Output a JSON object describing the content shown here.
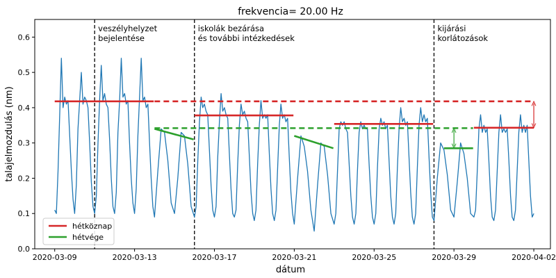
{
  "chart_data": {
    "type": "line",
    "title": "frekvencia= 20.00 Hz",
    "xlabel": "dátum",
    "ylabel": "talajelmozdulás (nm)",
    "xlim": [
      "2020-03-08 00:00",
      "2020-04-02 20:00"
    ],
    "ylim": [
      0,
      0.65
    ],
    "grid": false,
    "legend_position": "bottom-left",
    "x_ticks": [
      "2020-03-09",
      "2020-03-13",
      "2020-03-17",
      "2020-03-21",
      "2020-03-25",
      "2020-03-29",
      "2020-04-02"
    ],
    "y_ticks": [
      0.0,
      0.1,
      0.2,
      0.3,
      0.4,
      0.5,
      0.6
    ],
    "y_tick_labels": [
      "0.0",
      "0.1",
      "0.2",
      "0.3",
      "0.4",
      "0.5",
      "0.6"
    ],
    "colors": {
      "signal": "#1f77b4",
      "weekday": "#d62728",
      "weekend": "#2ca02c",
      "event": "#000000"
    },
    "series": [
      {
        "style": "signal",
        "x": [
          "2020-03-09 00:00",
          "2020-03-09 02:00",
          "2020-03-09 04:00",
          "2020-03-09 06:00",
          "2020-03-09 08:00",
          "2020-03-09 10:00",
          "2020-03-09 12:00",
          "2020-03-09 14:00",
          "2020-03-09 16:00",
          "2020-03-09 18:00",
          "2020-03-09 20:00",
          "2020-03-09 22:00",
          "2020-03-10 00:00",
          "2020-03-10 02:00",
          "2020-03-10 04:00",
          "2020-03-10 06:00",
          "2020-03-10 08:00",
          "2020-03-10 10:00",
          "2020-03-10 12:00",
          "2020-03-10 14:00",
          "2020-03-10 16:00",
          "2020-03-10 18:00",
          "2020-03-10 20:00",
          "2020-03-10 22:00",
          "2020-03-11 00:00",
          "2020-03-11 02:00",
          "2020-03-11 04:00",
          "2020-03-11 06:00",
          "2020-03-11 08:00",
          "2020-03-11 10:00",
          "2020-03-11 12:00",
          "2020-03-11 14:00",
          "2020-03-11 16:00",
          "2020-03-11 18:00",
          "2020-03-11 20:00",
          "2020-03-11 22:00",
          "2020-03-12 00:00",
          "2020-03-12 02:00",
          "2020-03-12 04:00",
          "2020-03-12 06:00",
          "2020-03-12 08:00",
          "2020-03-12 10:00",
          "2020-03-12 12:00",
          "2020-03-12 14:00",
          "2020-03-12 16:00",
          "2020-03-12 18:00",
          "2020-03-12 20:00",
          "2020-03-12 22:00",
          "2020-03-13 00:00",
          "2020-03-13 02:00",
          "2020-03-13 04:00",
          "2020-03-13 06:00",
          "2020-03-13 08:00",
          "2020-03-13 10:00",
          "2020-03-13 12:00",
          "2020-03-13 14:00",
          "2020-03-13 16:00",
          "2020-03-13 18:00",
          "2020-03-13 20:00",
          "2020-03-13 22:00",
          "2020-03-14 00:00",
          "2020-03-14 04:00",
          "2020-03-14 08:00",
          "2020-03-14 12:00",
          "2020-03-14 16:00",
          "2020-03-14 20:00",
          "2020-03-15 00:00",
          "2020-03-15 04:00",
          "2020-03-15 08:00",
          "2020-03-15 12:00",
          "2020-03-15 16:00",
          "2020-03-15 20:00",
          "2020-03-16 00:00",
          "2020-03-16 02:00",
          "2020-03-16 04:00",
          "2020-03-16 06:00",
          "2020-03-16 08:00",
          "2020-03-16 10:00",
          "2020-03-16 12:00",
          "2020-03-16 14:00",
          "2020-03-16 16:00",
          "2020-03-16 18:00",
          "2020-03-16 20:00",
          "2020-03-16 22:00",
          "2020-03-17 00:00",
          "2020-03-17 02:00",
          "2020-03-17 04:00",
          "2020-03-17 06:00",
          "2020-03-17 08:00",
          "2020-03-17 10:00",
          "2020-03-17 12:00",
          "2020-03-17 14:00",
          "2020-03-17 16:00",
          "2020-03-17 18:00",
          "2020-03-17 20:00",
          "2020-03-17 22:00",
          "2020-03-18 00:00",
          "2020-03-18 02:00",
          "2020-03-18 04:00",
          "2020-03-18 06:00",
          "2020-03-18 08:00",
          "2020-03-18 10:00",
          "2020-03-18 12:00",
          "2020-03-18 14:00",
          "2020-03-18 16:00",
          "2020-03-18 18:00",
          "2020-03-18 20:00",
          "2020-03-18 22:00",
          "2020-03-19 00:00",
          "2020-03-19 02:00",
          "2020-03-19 04:00",
          "2020-03-19 06:00",
          "2020-03-19 08:00",
          "2020-03-19 10:00",
          "2020-03-19 12:00",
          "2020-03-19 14:00",
          "2020-03-19 16:00",
          "2020-03-19 18:00",
          "2020-03-19 20:00",
          "2020-03-19 22:00",
          "2020-03-20 00:00",
          "2020-03-20 02:00",
          "2020-03-20 04:00",
          "2020-03-20 06:00",
          "2020-03-20 08:00",
          "2020-03-20 10:00",
          "2020-03-20 12:00",
          "2020-03-20 14:00",
          "2020-03-20 16:00",
          "2020-03-20 18:00",
          "2020-03-20 20:00",
          "2020-03-20 22:00",
          "2020-03-21 00:00",
          "2020-03-21 04:00",
          "2020-03-21 08:00",
          "2020-03-21 12:00",
          "2020-03-21 16:00",
          "2020-03-21 20:00",
          "2020-03-22 00:00",
          "2020-03-22 04:00",
          "2020-03-22 08:00",
          "2020-03-22 12:00",
          "2020-03-22 16:00",
          "2020-03-22 20:00",
          "2020-03-23 00:00",
          "2020-03-23 02:00",
          "2020-03-23 04:00",
          "2020-03-23 06:00",
          "2020-03-23 08:00",
          "2020-03-23 10:00",
          "2020-03-23 12:00",
          "2020-03-23 14:00",
          "2020-03-23 16:00",
          "2020-03-23 18:00",
          "2020-03-23 20:00",
          "2020-03-23 22:00",
          "2020-03-24 00:00",
          "2020-03-24 02:00",
          "2020-03-24 04:00",
          "2020-03-24 06:00",
          "2020-03-24 08:00",
          "2020-03-24 10:00",
          "2020-03-24 12:00",
          "2020-03-24 14:00",
          "2020-03-24 16:00",
          "2020-03-24 18:00",
          "2020-03-24 20:00",
          "2020-03-24 22:00",
          "2020-03-25 00:00",
          "2020-03-25 02:00",
          "2020-03-25 04:00",
          "2020-03-25 06:00",
          "2020-03-25 08:00",
          "2020-03-25 10:00",
          "2020-03-25 12:00",
          "2020-03-25 14:00",
          "2020-03-25 16:00",
          "2020-03-25 18:00",
          "2020-03-25 20:00",
          "2020-03-25 22:00",
          "2020-03-26 00:00",
          "2020-03-26 02:00",
          "2020-03-26 04:00",
          "2020-03-26 06:00",
          "2020-03-26 08:00",
          "2020-03-26 10:00",
          "2020-03-26 12:00",
          "2020-03-26 14:00",
          "2020-03-26 16:00",
          "2020-03-26 18:00",
          "2020-03-26 20:00",
          "2020-03-26 22:00",
          "2020-03-27 00:00",
          "2020-03-27 02:00",
          "2020-03-27 04:00",
          "2020-03-27 06:00",
          "2020-03-27 08:00",
          "2020-03-27 10:00",
          "2020-03-27 12:00",
          "2020-03-27 14:00",
          "2020-03-27 16:00",
          "2020-03-27 18:00",
          "2020-03-27 20:00",
          "2020-03-27 22:00",
          "2020-03-28 00:00",
          "2020-03-28 04:00",
          "2020-03-28 08:00",
          "2020-03-28 12:00",
          "2020-03-28 16:00",
          "2020-03-28 20:00",
          "2020-03-29 00:00",
          "2020-03-29 04:00",
          "2020-03-29 08:00",
          "2020-03-29 12:00",
          "2020-03-29 16:00",
          "2020-03-29 20:00",
          "2020-03-30 00:00",
          "2020-03-30 02:00",
          "2020-03-30 04:00",
          "2020-03-30 06:00",
          "2020-03-30 08:00",
          "2020-03-30 10:00",
          "2020-03-30 12:00",
          "2020-03-30 14:00",
          "2020-03-30 16:00",
          "2020-03-30 18:00",
          "2020-03-30 20:00",
          "2020-03-30 22:00",
          "2020-03-31 00:00",
          "2020-03-31 02:00",
          "2020-03-31 04:00",
          "2020-03-31 06:00",
          "2020-03-31 08:00",
          "2020-03-31 10:00",
          "2020-03-31 12:00",
          "2020-03-31 14:00",
          "2020-03-31 16:00",
          "2020-03-31 18:00",
          "2020-03-31 20:00",
          "2020-03-31 22:00",
          "2020-04-01 00:00",
          "2020-04-01 02:00",
          "2020-04-01 04:00",
          "2020-04-01 06:00",
          "2020-04-01 08:00",
          "2020-04-01 10:00",
          "2020-04-01 12:00",
          "2020-04-01 14:00",
          "2020-04-01 16:00",
          "2020-04-01 18:00",
          "2020-04-01 20:00",
          "2020-04-01 22:00",
          "2020-04-02 00:00"
        ],
        "values": [
          0.11,
          0.1,
          0.22,
          0.38,
          0.54,
          0.4,
          0.43,
          0.41,
          0.42,
          0.32,
          0.22,
          0.14,
          0.1,
          0.18,
          0.34,
          0.42,
          0.5,
          0.41,
          0.43,
          0.42,
          0.4,
          0.3,
          0.19,
          0.12,
          0.1,
          0.15,
          0.3,
          0.42,
          0.52,
          0.42,
          0.44,
          0.41,
          0.4,
          0.31,
          0.2,
          0.12,
          0.1,
          0.16,
          0.33,
          0.42,
          0.54,
          0.43,
          0.44,
          0.41,
          0.42,
          0.3,
          0.2,
          0.13,
          0.1,
          0.17,
          0.32,
          0.43,
          0.54,
          0.42,
          0.43,
          0.4,
          0.41,
          0.3,
          0.2,
          0.12,
          0.09,
          0.22,
          0.34,
          0.33,
          0.25,
          0.13,
          0.1,
          0.2,
          0.33,
          0.32,
          0.24,
          0.12,
          0.09,
          0.12,
          0.25,
          0.36,
          0.43,
          0.4,
          0.41,
          0.39,
          0.38,
          0.28,
          0.18,
          0.11,
          0.09,
          0.12,
          0.26,
          0.36,
          0.44,
          0.39,
          0.4,
          0.38,
          0.37,
          0.27,
          0.17,
          0.1,
          0.09,
          0.11,
          0.24,
          0.35,
          0.41,
          0.38,
          0.39,
          0.37,
          0.36,
          0.26,
          0.16,
          0.1,
          0.08,
          0.11,
          0.24,
          0.35,
          0.42,
          0.37,
          0.38,
          0.37,
          0.38,
          0.27,
          0.17,
          0.1,
          0.08,
          0.11,
          0.23,
          0.35,
          0.41,
          0.37,
          0.38,
          0.36,
          0.37,
          0.26,
          0.16,
          0.1,
          0.07,
          0.2,
          0.32,
          0.29,
          0.22,
          0.11,
          0.05,
          0.18,
          0.3,
          0.29,
          0.21,
          0.1,
          0.07,
          0.1,
          0.22,
          0.34,
          0.36,
          0.35,
          0.36,
          0.34,
          0.33,
          0.24,
          0.15,
          0.09,
          0.07,
          0.1,
          0.22,
          0.33,
          0.36,
          0.34,
          0.35,
          0.34,
          0.34,
          0.24,
          0.15,
          0.09,
          0.07,
          0.1,
          0.23,
          0.34,
          0.37,
          0.35,
          0.36,
          0.34,
          0.35,
          0.25,
          0.15,
          0.09,
          0.07,
          0.1,
          0.23,
          0.34,
          0.4,
          0.36,
          0.37,
          0.35,
          0.36,
          0.26,
          0.16,
          0.09,
          0.07,
          0.1,
          0.23,
          0.35,
          0.4,
          0.36,
          0.38,
          0.36,
          0.37,
          0.26,
          0.16,
          0.09,
          0.08,
          0.2,
          0.3,
          0.28,
          0.21,
          0.11,
          0.09,
          0.19,
          0.3,
          0.27,
          0.2,
          0.1,
          0.09,
          0.11,
          0.22,
          0.34,
          0.38,
          0.33,
          0.35,
          0.33,
          0.34,
          0.25,
          0.15,
          0.09,
          0.08,
          0.11,
          0.22,
          0.33,
          0.38,
          0.33,
          0.34,
          0.33,
          0.34,
          0.25,
          0.15,
          0.09,
          0.08,
          0.11,
          0.22,
          0.33,
          0.38,
          0.33,
          0.35,
          0.33,
          0.35,
          0.25,
          0.15,
          0.09,
          0.1
        ]
      },
      {
        "name": "hétköznap",
        "style": "weekday",
        "segments": [
          {
            "x": [
              "2020-03-09 00:00",
              "2020-03-13 23:00"
            ],
            "y": [
              0.418,
              0.418
            ],
            "dash": false
          },
          {
            "x": [
              "2020-03-14 00:00",
              "2020-04-02 00:00"
            ],
            "y": [
              0.418,
              0.418
            ],
            "dash": true
          },
          {
            "x": [
              "2020-03-16 00:00",
              "2020-03-20 23:00"
            ],
            "y": [
              0.378,
              0.378
            ],
            "dash": false
          },
          {
            "x": [
              "2020-03-23 00:00",
              "2020-03-27 23:00"
            ],
            "y": [
              0.354,
              0.354
            ],
            "dash": false
          },
          {
            "x": [
              "2020-03-30 00:00",
              "2020-04-02 00:00"
            ],
            "y": [
              0.343,
              0.343
            ],
            "dash": false
          }
        ]
      },
      {
        "name": "hétvége",
        "style": "weekend",
        "segments": [
          {
            "x": [
              "2020-03-14 00:00",
              "2020-03-29 23:00"
            ],
            "y": [
              0.342,
              0.342
            ],
            "dash": true
          },
          {
            "x": [
              "2020-03-14 00:00",
              "2020-03-15 23:00"
            ],
            "y": [
              0.34,
              0.31
            ],
            "dash": false
          },
          {
            "x": [
              "2020-03-21 00:00",
              "2020-03-22 23:00"
            ],
            "y": [
              0.32,
              0.285
            ],
            "dash": false
          },
          {
            "x": [
              "2020-03-28 12:00",
              "2020-03-29 23:00"
            ],
            "y": [
              0.285,
              0.285
            ],
            "dash": false
          }
        ]
      }
    ],
    "events": [
      {
        "x": "2020-03-11 00:00",
        "lines": [
          "veszélyhelyzet",
          "bejelentése"
        ]
      },
      {
        "x": "2020-03-16 00:00",
        "lines": [
          "iskolák bezárása",
          "és további intézkedések"
        ]
      },
      {
        "x": "2020-03-28 00:00",
        "lines": [
          "kijárási",
          "korlátozások"
        ]
      }
    ],
    "arrows": [
      {
        "style": "weekend",
        "x": "2020-03-29 00:00",
        "from": 0.342,
        "to": 0.285
      },
      {
        "style": "weekday",
        "x": "2020-04-02 00:00",
        "from": 0.418,
        "to": 0.343
      }
    ]
  }
}
